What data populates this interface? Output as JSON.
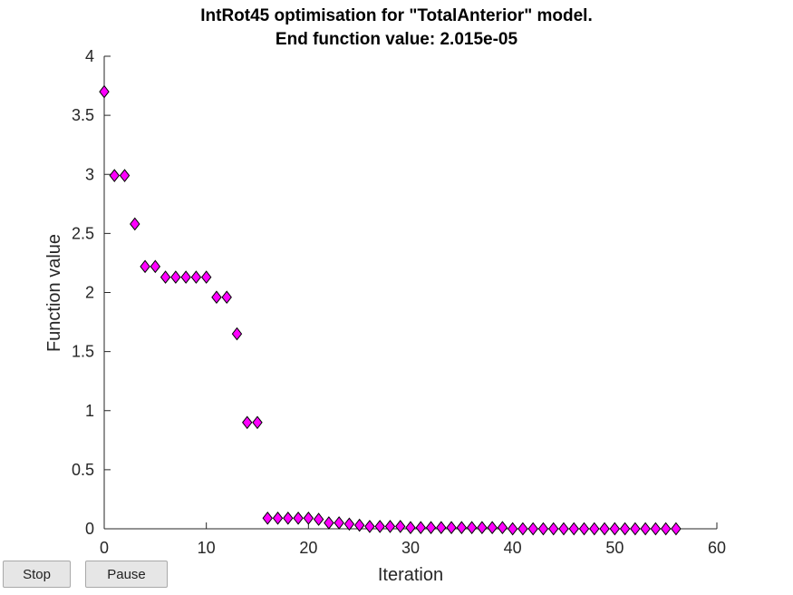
{
  "title": {
    "line1": "IntRot45 optimisation for \"TotalAnterior\" model.",
    "line2": "End function value: 2.015e-05"
  },
  "controls": {
    "stop_label": "Stop",
    "pause_label": "Pause"
  },
  "colors": {
    "marker_fill": "#ff00ff",
    "marker_edge": "#000000",
    "axis": "#262626"
  },
  "chart_data": {
    "type": "scatter",
    "title": "IntRot45 optimisation for \"TotalAnterior\" model.\nEnd function value: 2.015e-05",
    "xlabel": "Iteration",
    "ylabel": "Function value",
    "xlim": [
      0,
      60
    ],
    "ylim": [
      0,
      4
    ],
    "xticks": [
      "0",
      "10",
      "20",
      "30",
      "40",
      "50",
      "60"
    ],
    "yticks": [
      "0",
      "0.5",
      "1",
      "1.5",
      "2",
      "2.5",
      "3",
      "3.5",
      "4"
    ],
    "grid": false,
    "marker": "diamond",
    "x": [
      0,
      1,
      2,
      3,
      4,
      5,
      6,
      7,
      8,
      9,
      10,
      11,
      12,
      13,
      14,
      15,
      16,
      17,
      18,
      19,
      20,
      21,
      22,
      23,
      24,
      25,
      26,
      27,
      28,
      29,
      30,
      31,
      32,
      33,
      34,
      35,
      36,
      37,
      38,
      39,
      40,
      41,
      42,
      43,
      44,
      45,
      46,
      47,
      48,
      49,
      50,
      51,
      52,
      53,
      54,
      55,
      56
    ],
    "y": [
      3.7,
      2.99,
      2.99,
      2.58,
      2.22,
      2.22,
      2.13,
      2.13,
      2.13,
      2.13,
      2.13,
      1.96,
      1.96,
      1.65,
      0.9,
      0.9,
      0.09,
      0.09,
      0.09,
      0.09,
      0.09,
      0.08,
      0.05,
      0.05,
      0.04,
      0.03,
      0.02,
      0.02,
      0.02,
      0.02,
      0.01,
      0.01,
      0.01,
      0.01,
      0.01,
      0.01,
      0.01,
      0.01,
      0.01,
      0.01,
      0.0,
      0.0,
      0.0,
      0.0,
      0.0,
      0.0,
      0.0,
      0.0,
      0.0,
      0.0,
      0.0,
      0.0,
      0.0,
      0.0,
      0.0,
      0.0,
      0.0
    ]
  }
}
